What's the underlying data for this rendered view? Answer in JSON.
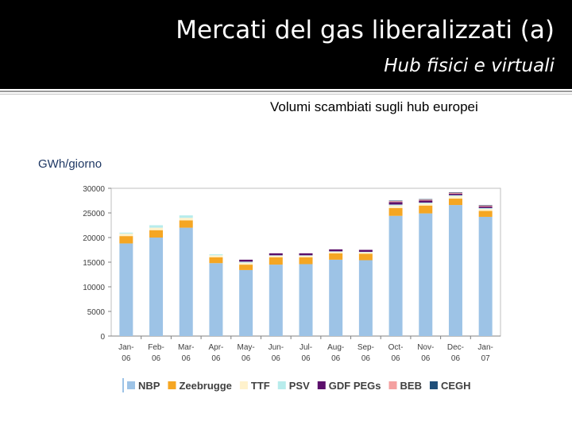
{
  "slide": {
    "title": "Mercati del gas liberalizzati (a)",
    "subtitle": "Hub fisici e virtuali",
    "caption": "Volumi scambiati sugli hub europei"
  },
  "chart_data": {
    "type": "bar",
    "stacked": true,
    "ylabel": "GWh/giorno",
    "ylim": [
      0,
      30000
    ],
    "yticks": [
      0,
      5000,
      10000,
      15000,
      20000,
      25000,
      30000
    ],
    "categories": [
      [
        "Jan-",
        "06"
      ],
      [
        "Feb-",
        "06"
      ],
      [
        "Mar-",
        "06"
      ],
      [
        "Apr-",
        "06"
      ],
      [
        "May-",
        "06"
      ],
      [
        "Jun-",
        "06"
      ],
      [
        "Jul-",
        "06"
      ],
      [
        "Aug-",
        "06"
      ],
      [
        "Sep-",
        "06"
      ],
      [
        "Oct-",
        "06"
      ],
      [
        "Nov-",
        "06"
      ],
      [
        "Dec-",
        "06"
      ],
      [
        "Jan-",
        "07"
      ]
    ],
    "series": [
      {
        "name": "NBP",
        "color": "#9dc3e6",
        "values": [
          18800,
          20000,
          22000,
          14800,
          13400,
          14500,
          14600,
          15500,
          15400,
          24400,
          24900,
          26600,
          24200
        ]
      },
      {
        "name": "Zeebrugge",
        "color": "#f5a623",
        "values": [
          1500,
          1500,
          1500,
          1200,
          1100,
          1500,
          1400,
          1300,
          1300,
          1600,
          1600,
          1300,
          1200
        ]
      },
      {
        "name": "TTF",
        "color": "#fff2cc",
        "values": [
          500,
          500,
          500,
          400,
          400,
          300,
          300,
          300,
          300,
          500,
          400,
          500,
          400
        ]
      },
      {
        "name": "PSV",
        "color": "#b7ecec",
        "values": [
          200,
          500,
          500,
          200,
          200,
          100,
          100,
          100,
          100,
          200,
          200,
          200,
          200
        ]
      },
      {
        "name": "GDF PEGs",
        "color": "#5b0f6b",
        "values": [
          0,
          0,
          0,
          0,
          400,
          400,
          400,
          400,
          400,
          500,
          400,
          300,
          300
        ]
      },
      {
        "name": "BEB",
        "color": "#f4a0a0",
        "values": [
          0,
          0,
          0,
          0,
          0,
          0,
          0,
          0,
          0,
          200,
          200,
          200,
          200
        ]
      },
      {
        "name": "CEGH",
        "color": "#1f4e79",
        "values": [
          0,
          0,
          0,
          0,
          0,
          0,
          0,
          0,
          0,
          100,
          100,
          100,
          100
        ]
      }
    ],
    "grid": false,
    "legend": "bottom"
  }
}
